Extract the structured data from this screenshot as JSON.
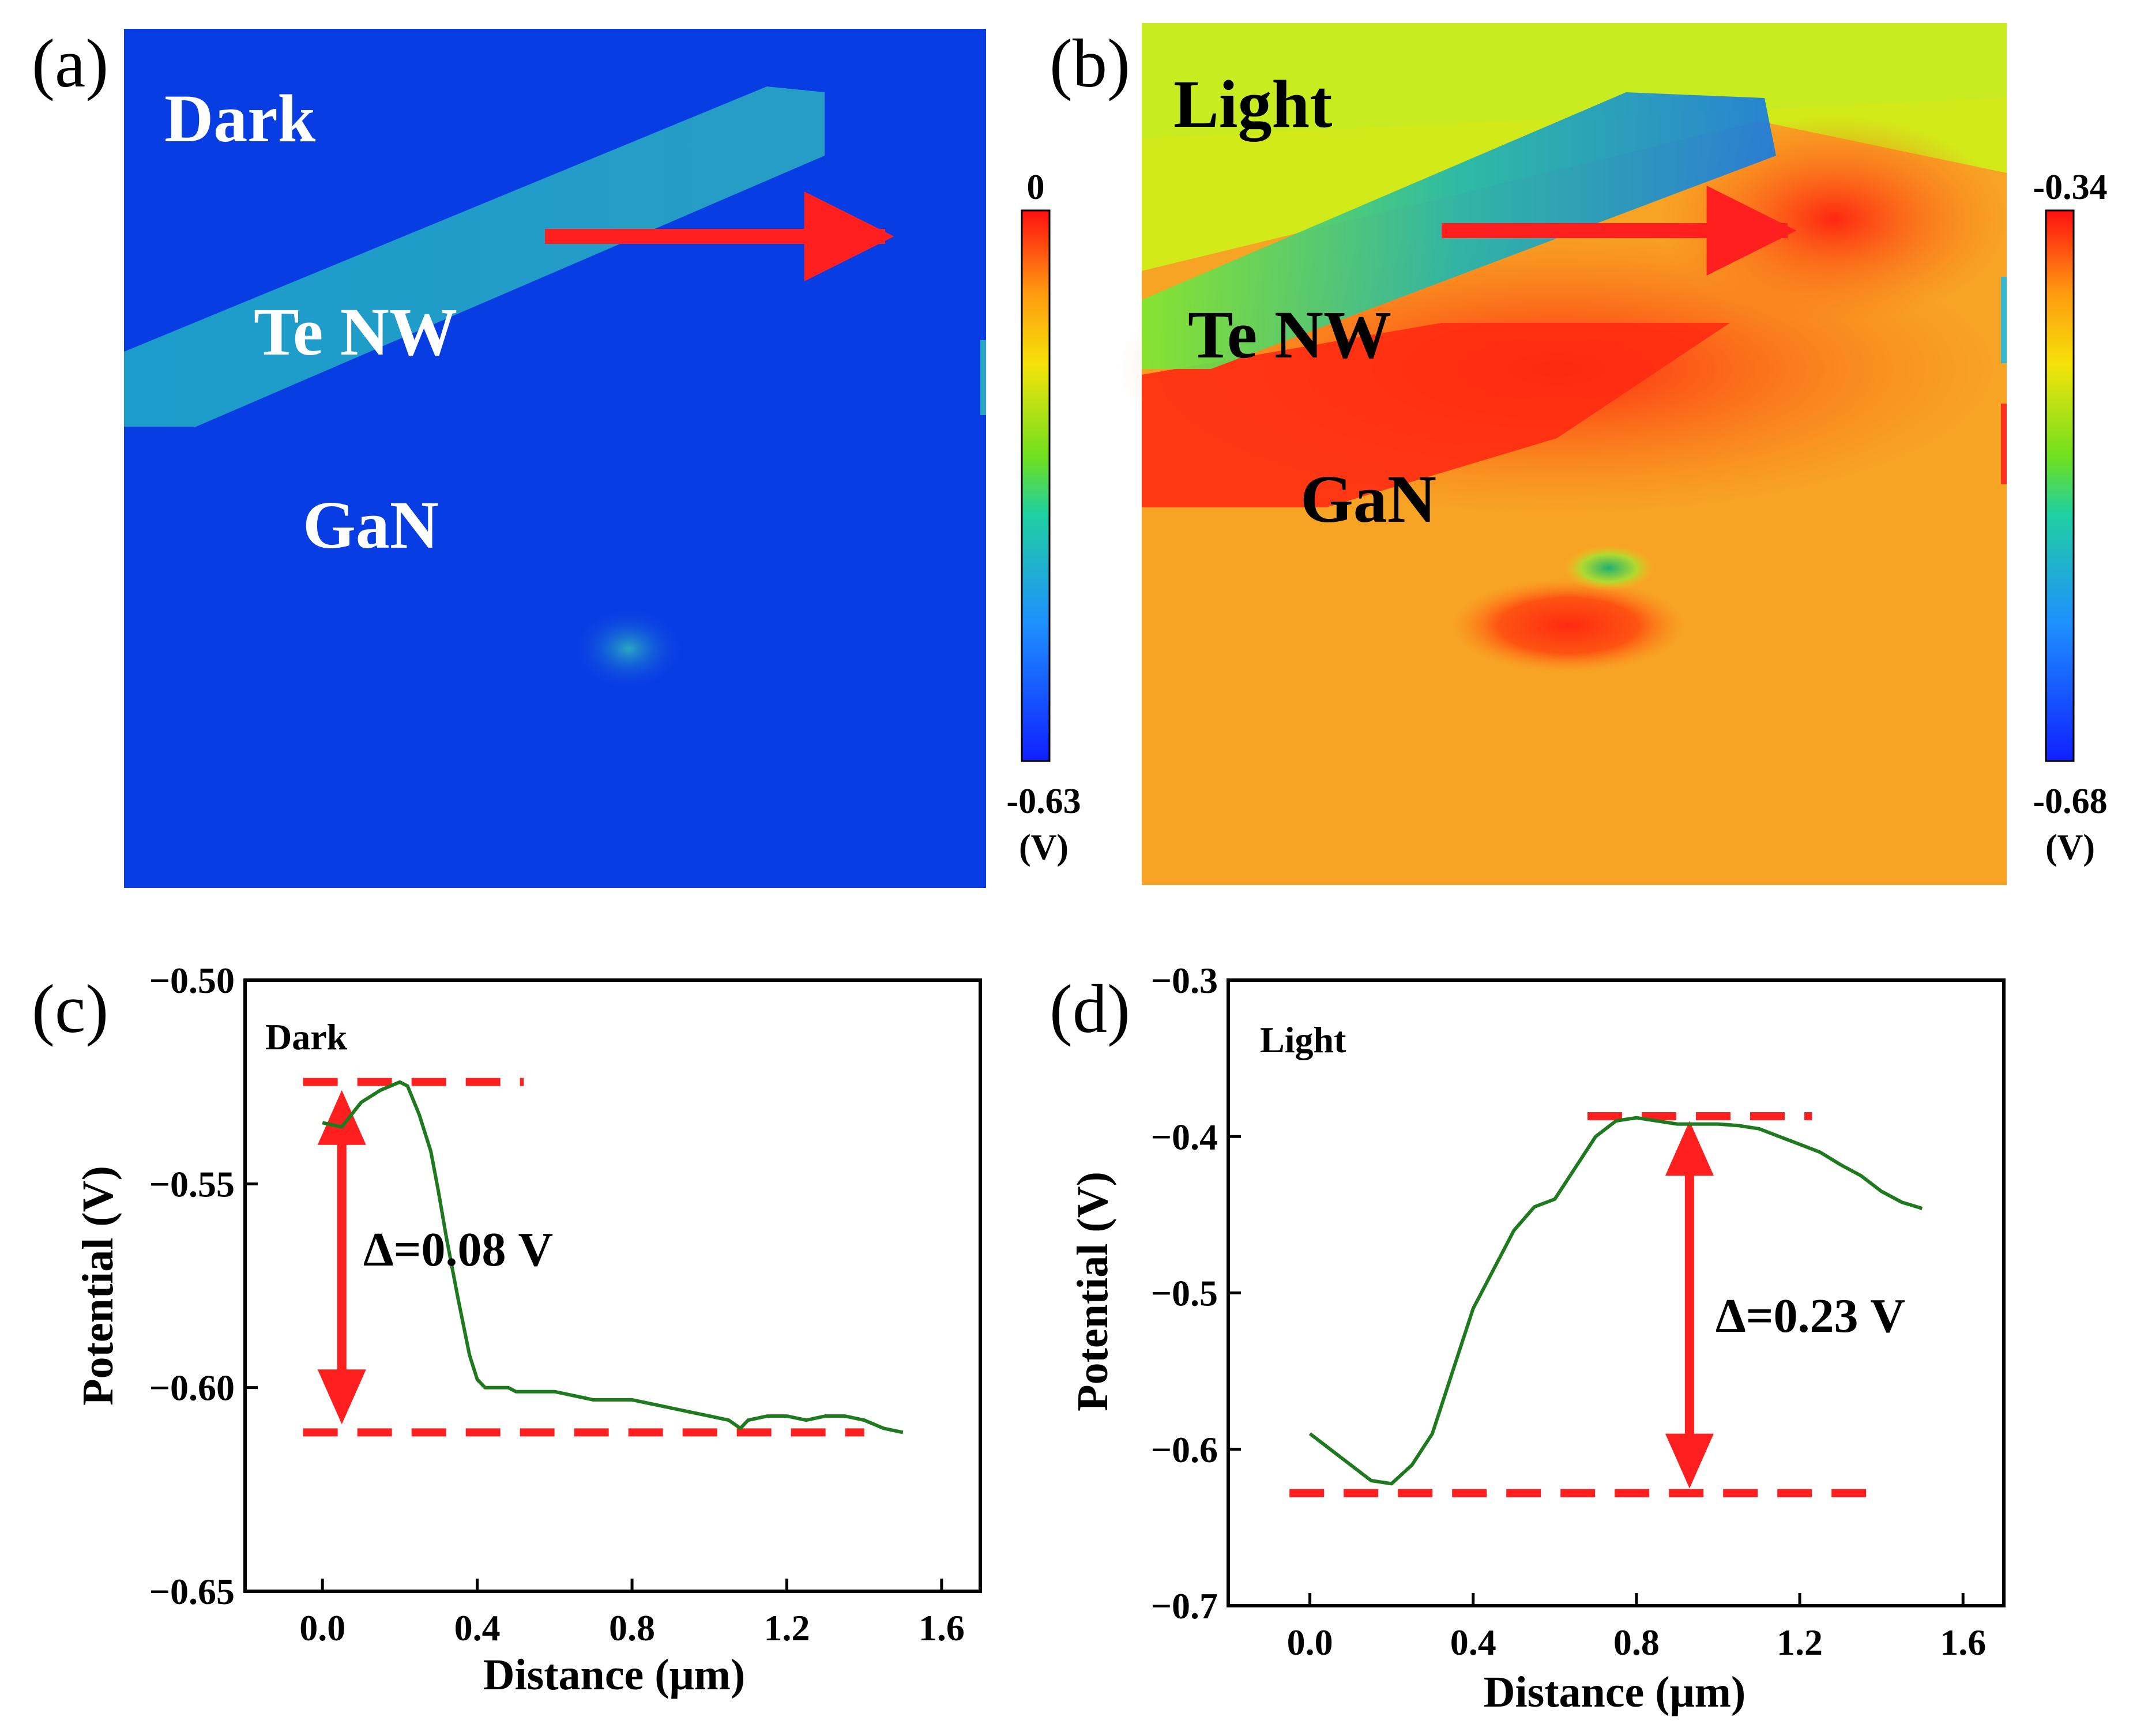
{
  "panels": {
    "a": {
      "label": "(a)",
      "condition": "Dark",
      "nw_label": "Te NW",
      "substrate_label": "GaN",
      "colorbar": {
        "max": "0",
        "min": "-0.63",
        "unit": "(V)"
      }
    },
    "b": {
      "label": "(b)",
      "condition": "Light",
      "nw_label": "Te NW",
      "substrate_label": "GaN",
      "colorbar": {
        "max": "-0.34",
        "min": "-0.68",
        "unit": "(V)"
      }
    },
    "c": {
      "label": "(c)",
      "inplot_label": "Dark",
      "delta_label": "=0.08 V"
    },
    "d": {
      "label": "(d)",
      "inplot_label": "Light",
      "delta_label": "=0.23 V"
    }
  },
  "colors": {
    "map_blue": "#0a3fe8",
    "map_orange": "#f7a324",
    "map_red": "#ff2a10",
    "line_green": "#1f7a1f",
    "guide_red": "#ff1f1f"
  },
  "chart_data": [
    {
      "type": "line",
      "panel": "c",
      "xlabel": "Distance (μm)",
      "ylabel": "Potential (V)",
      "xlim": [
        -0.2,
        1.7
      ],
      "ylim": [
        -0.65,
        -0.5
      ],
      "xticks": [
        0.0,
        0.4,
        0.8,
        1.2,
        1.6
      ],
      "xtick_labels": [
        "0.0",
        "0.4",
        "0.8",
        "1.2",
        "1.6"
      ],
      "yticks": [
        -0.65,
        -0.6,
        -0.55,
        -0.5
      ],
      "ytick_labels": [
        "−0.65",
        "−0.60",
        "−0.55",
        "−0.50"
      ],
      "series": [
        {
          "color": "#1f7a1f",
          "x": [
            0.0,
            0.05,
            0.1,
            0.15,
            0.2,
            0.22,
            0.25,
            0.28,
            0.3,
            0.32,
            0.35,
            0.38,
            0.4,
            0.42,
            0.45,
            0.48,
            0.5,
            0.55,
            0.6,
            0.65,
            0.7,
            0.75,
            0.8,
            0.85,
            0.9,
            0.95,
            1.0,
            1.05,
            1.08,
            1.1,
            1.15,
            1.2,
            1.25,
            1.3,
            1.35,
            1.4,
            1.45,
            1.5
          ],
          "y": [
            -0.535,
            -0.536,
            -0.53,
            -0.527,
            -0.525,
            -0.526,
            -0.533,
            -0.542,
            -0.552,
            -0.563,
            -0.578,
            -0.592,
            -0.598,
            -0.6,
            -0.6,
            -0.6,
            -0.601,
            -0.601,
            -0.601,
            -0.602,
            -0.603,
            -0.603,
            -0.603,
            -0.604,
            -0.605,
            -0.606,
            -0.607,
            -0.608,
            -0.61,
            -0.608,
            -0.607,
            -0.607,
            -0.608,
            -0.607,
            -0.607,
            -0.608,
            -0.61,
            -0.611
          ]
        }
      ],
      "guides": {
        "top": {
          "y": -0.525,
          "x": [
            -0.05,
            0.52
          ]
        },
        "bottom": {
          "y": -0.611,
          "x": [
            -0.05,
            1.4
          ]
        },
        "arrow": {
          "x": 0.05,
          "y": [
            -0.527,
            -0.609
          ]
        }
      }
    },
    {
      "type": "line",
      "panel": "d",
      "xlabel": "Distance (μm)",
      "ylabel": "Potential (V)",
      "xlim": [
        -0.2,
        1.7
      ],
      "ylim": [
        -0.7,
        -0.3
      ],
      "xticks": [
        0.0,
        0.4,
        0.8,
        1.2,
        1.6
      ],
      "xtick_labels": [
        "0.0",
        "0.4",
        "0.8",
        "1.2",
        "1.6"
      ],
      "yticks": [
        -0.7,
        -0.6,
        -0.5,
        -0.4,
        -0.3
      ],
      "ytick_labels": [
        "−0.7",
        "−0.6",
        "−0.5",
        "−0.4",
        "−0.3"
      ],
      "series": [
        {
          "color": "#1f7a1f",
          "x": [
            0.0,
            0.05,
            0.1,
            0.15,
            0.2,
            0.25,
            0.3,
            0.35,
            0.4,
            0.45,
            0.5,
            0.55,
            0.6,
            0.65,
            0.7,
            0.75,
            0.8,
            0.85,
            0.9,
            0.95,
            1.0,
            1.05,
            1.1,
            1.15,
            1.2,
            1.25,
            1.3,
            1.35,
            1.4,
            1.45,
            1.5
          ],
          "y": [
            -0.59,
            -0.6,
            -0.61,
            -0.62,
            -0.622,
            -0.61,
            -0.59,
            -0.55,
            -0.51,
            -0.485,
            -0.46,
            -0.445,
            -0.44,
            -0.42,
            -0.4,
            -0.39,
            -0.388,
            -0.39,
            -0.392,
            -0.392,
            -0.392,
            -0.393,
            -0.395,
            -0.4,
            -0.405,
            -0.41,
            -0.418,
            -0.425,
            -0.435,
            -0.442,
            -0.446
          ]
        }
      ],
      "guides": {
        "top": {
          "y": -0.387,
          "x": [
            0.68,
            1.23
          ]
        },
        "bottom": {
          "y": -0.628,
          "x": [
            -0.05,
            1.38
          ]
        },
        "arrow": {
          "x": 0.93,
          "y": [
            -0.39,
            -0.625
          ]
        }
      }
    }
  ]
}
